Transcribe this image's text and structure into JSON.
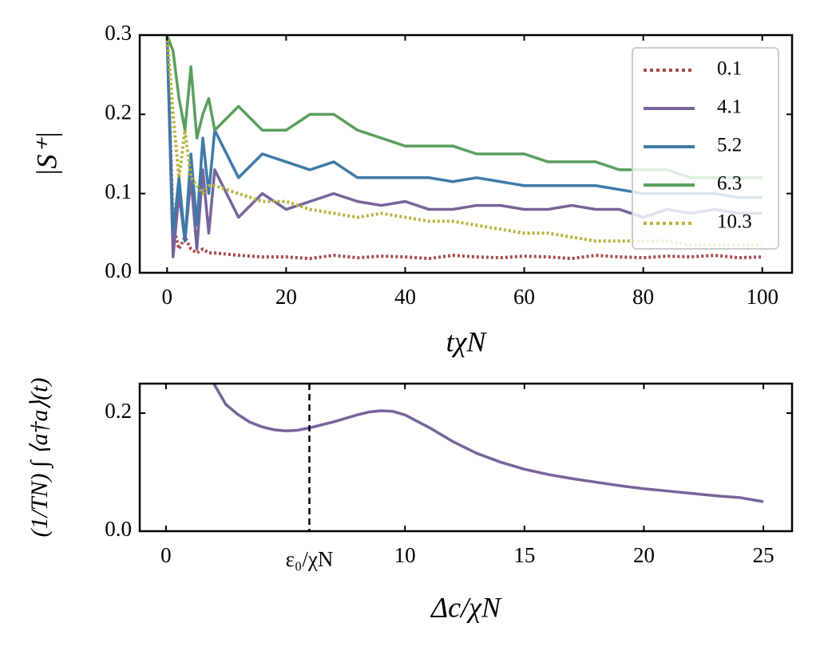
{
  "chart_data": [
    {
      "type": "line",
      "ylabel": "|S⁺|",
      "xlabel": "tχN",
      "xlim": [
        -4.6,
        105
      ],
      "ylim": [
        0,
        0.3
      ],
      "xticks": [
        0,
        20,
        40,
        60,
        80,
        100
      ],
      "yticks": [
        {
          "value": 0,
          "label": "0.0"
        },
        0.1,
        0.2,
        0.3
      ],
      "legend": "upper right",
      "x": [
        0,
        1,
        2,
        3,
        4,
        5,
        6,
        7,
        8,
        12,
        16,
        20,
        24,
        28,
        32,
        36,
        40,
        44,
        48,
        52,
        56,
        60,
        64,
        68,
        72,
        76,
        80,
        84,
        88,
        92,
        96,
        100
      ],
      "series": [
        {
          "name": "0.1",
          "color": "#a94a4a",
          "linestyle": "dotted",
          "values": [
            0.3,
            0.06,
            0.03,
            0.045,
            0.03,
            0.025,
            0.03,
            0.025,
            0.025,
            0.022,
            0.02,
            0.02,
            0.018,
            0.022,
            0.019,
            0.021,
            0.02,
            0.018,
            0.022,
            0.02,
            0.019,
            0.021,
            0.02,
            0.018,
            0.022,
            0.02,
            0.019,
            0.021,
            0.02,
            0.022,
            0.019,
            0.02
          ]
        },
        {
          "name": "4.1",
          "color": "#76649a",
          "linestyle": "solid",
          "values": [
            0.3,
            0.02,
            0.1,
            0.04,
            0.12,
            0.03,
            0.13,
            0.05,
            0.13,
            0.07,
            0.1,
            0.08,
            0.09,
            0.1,
            0.09,
            0.085,
            0.09,
            0.08,
            0.08,
            0.085,
            0.085,
            0.08,
            0.08,
            0.085,
            0.08,
            0.08,
            0.07,
            0.08,
            0.075,
            0.08,
            0.075,
            0.075
          ]
        },
        {
          "name": "5.2",
          "color": "#3e7aa8",
          "linestyle": "solid",
          "values": [
            0.3,
            0.05,
            0.12,
            0.04,
            0.15,
            0.06,
            0.17,
            0.1,
            0.18,
            0.12,
            0.15,
            0.14,
            0.13,
            0.14,
            0.12,
            0.12,
            0.12,
            0.12,
            0.115,
            0.12,
            0.115,
            0.11,
            0.11,
            0.11,
            0.11,
            0.105,
            0.1,
            0.1,
            0.1,
            0.1,
            0.095,
            0.095
          ]
        },
        {
          "name": "6.3",
          "color": "#5a9e5e",
          "linestyle": "solid",
          "values": [
            0.3,
            0.28,
            0.22,
            0.18,
            0.26,
            0.17,
            0.2,
            0.22,
            0.18,
            0.21,
            0.18,
            0.18,
            0.2,
            0.2,
            0.18,
            0.17,
            0.16,
            0.16,
            0.16,
            0.15,
            0.15,
            0.15,
            0.14,
            0.14,
            0.14,
            0.13,
            0.13,
            0.13,
            0.12,
            0.12,
            0.12,
            0.12
          ]
        },
        {
          "name": "10.3",
          "color": "#b8b23c",
          "linestyle": "dotted",
          "values": [
            0.3,
            0.2,
            0.12,
            0.18,
            0.12,
            0.11,
            0.1,
            0.11,
            0.11,
            0.1,
            0.09,
            0.09,
            0.08,
            0.075,
            0.07,
            0.075,
            0.07,
            0.065,
            0.065,
            0.06,
            0.055,
            0.05,
            0.05,
            0.045,
            0.04,
            0.04,
            0.04,
            0.04,
            0.035,
            0.035,
            0.035,
            0.035
          ]
        }
      ]
    },
    {
      "type": "line",
      "ylabel": "(1/TN) ∫ ⟨a†a⟩(t)",
      "xlabel": "Δc/χN",
      "xlim": [
        -1.1,
        26.2
      ],
      "ylim": [
        0,
        0.25
      ],
      "xticks": [
        0,
        10,
        15,
        20,
        25
      ],
      "yticks": [
        {
          "value": 0,
          "label": "0.0"
        },
        0.2
      ],
      "color": "#76649a",
      "annotations": [
        {
          "text": "ε₀/χN",
          "x": 6
        }
      ],
      "x": [
        2,
        2.5,
        3,
        3.5,
        4,
        4.5,
        5,
        5.5,
        6,
        7,
        8,
        8.5,
        9,
        9.5,
        10,
        11,
        12,
        13,
        14,
        15,
        16,
        17,
        18,
        19,
        20,
        21,
        22,
        23,
        24,
        25
      ],
      "values": [
        0.25,
        0.215,
        0.198,
        0.185,
        0.177,
        0.172,
        0.17,
        0.171,
        0.175,
        0.185,
        0.197,
        0.202,
        0.204,
        0.203,
        0.197,
        0.176,
        0.152,
        0.132,
        0.117,
        0.105,
        0.096,
        0.089,
        0.083,
        0.077,
        0.072,
        0.068,
        0.064,
        0.06,
        0.057,
        0.05
      ]
    }
  ]
}
